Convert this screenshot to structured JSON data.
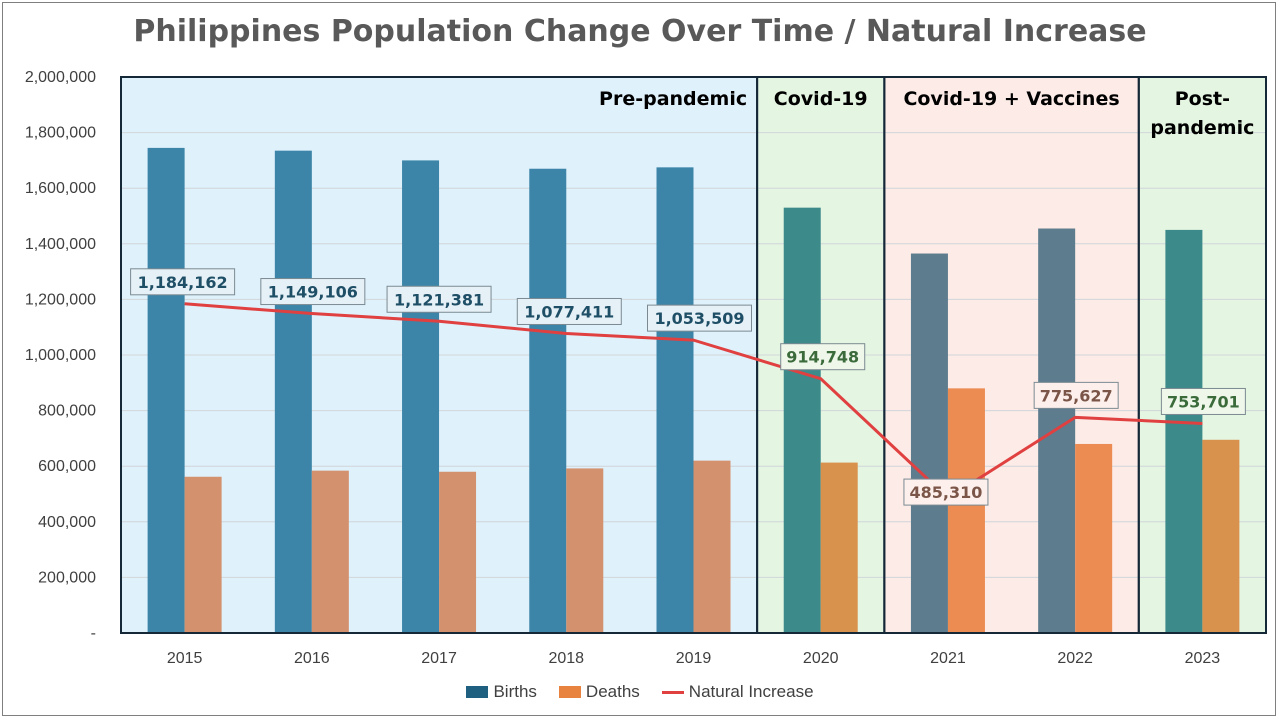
{
  "chart_data": {
    "type": "bar",
    "title": "Philippines Population Change Over Time / Natural Increase",
    "categories": [
      "2015",
      "2016",
      "2017",
      "2018",
      "2019",
      "2020",
      "2021",
      "2022",
      "2023"
    ],
    "ylim": [
      0,
      2000000
    ],
    "yticks": [
      "-",
      "200,000",
      "400,000",
      "600,000",
      "800,000",
      "1,000,000",
      "1,200,000",
      "1,400,000",
      "1,600,000",
      "1,800,000",
      "2,000,000"
    ],
    "grid": true,
    "legend_position": "bottom",
    "series": [
      {
        "name": "Births",
        "type": "bar",
        "values": [
          1745000,
          1735000,
          1700000,
          1670000,
          1675000,
          1530000,
          1365000,
          1455000,
          1450000
        ]
      },
      {
        "name": "Deaths",
        "type": "bar",
        "values": [
          562000,
          584000,
          580000,
          592000,
          620000,
          613000,
          880000,
          680000,
          695000
        ]
      },
      {
        "name": "Natural Increase",
        "type": "line",
        "values": [
          1184162,
          1149106,
          1121381,
          1077411,
          1053509,
          914748,
          485310,
          775627,
          753701
        ],
        "labels": [
          "1,184,162",
          "1,149,106",
          "1,121,381",
          "1,077,411",
          "1,053,509",
          "914,748",
          "485,310",
          "775,627",
          "753,701"
        ]
      }
    ],
    "periods": [
      {
        "label": [
          "Pre-pandemic"
        ],
        "first": 0,
        "last": 4,
        "fill": "#dff1fb"
      },
      {
        "label": [
          "Covid-19"
        ],
        "first": 5,
        "last": 5,
        "fill": "#e4f5e1"
      },
      {
        "label": [
          "Covid-19 + Vaccines"
        ],
        "first": 6,
        "last": 7,
        "fill": "#fcebe6"
      },
      {
        "label": [
          "Post-",
          "pandemic"
        ],
        "first": 8,
        "last": 8,
        "fill": "#e4f5e1"
      }
    ]
  },
  "legend": {
    "births": "Births",
    "deaths": "Deaths",
    "natural_increase": "Natural Increase"
  },
  "colors": {
    "births": "#1f5f7f",
    "deaths": "#e8823f",
    "line": "#e04040",
    "period_births": [
      "#3c85a8",
      "#3c85a8",
      "#3c85a8",
      "#3c85a8",
      "#3c85a8",
      "#3d8a8a",
      "#5d7c8e",
      "#5d7c8e",
      "#3d8a8a"
    ],
    "period_deaths": [
      "#d4916d",
      "#d4916d",
      "#d4916d",
      "#d4916d",
      "#d4916d",
      "#d9924e",
      "#ec8b52",
      "#ec8b52",
      "#d9924e"
    ],
    "label_fill": [
      "#e6f1f7",
      "#e6f1f7",
      "#e6f1f7",
      "#e6f1f7",
      "#e6f1f7",
      "#eef7ea",
      "#fdf0ec",
      "#fdf0ec",
      "#eef7ea"
    ],
    "label_text": [
      "#1f4f66",
      "#1f4f66",
      "#1f4f66",
      "#1f4f66",
      "#1f4f66",
      "#3b6b3b",
      "#7a5548",
      "#7a5548",
      "#3b6b3b"
    ]
  }
}
